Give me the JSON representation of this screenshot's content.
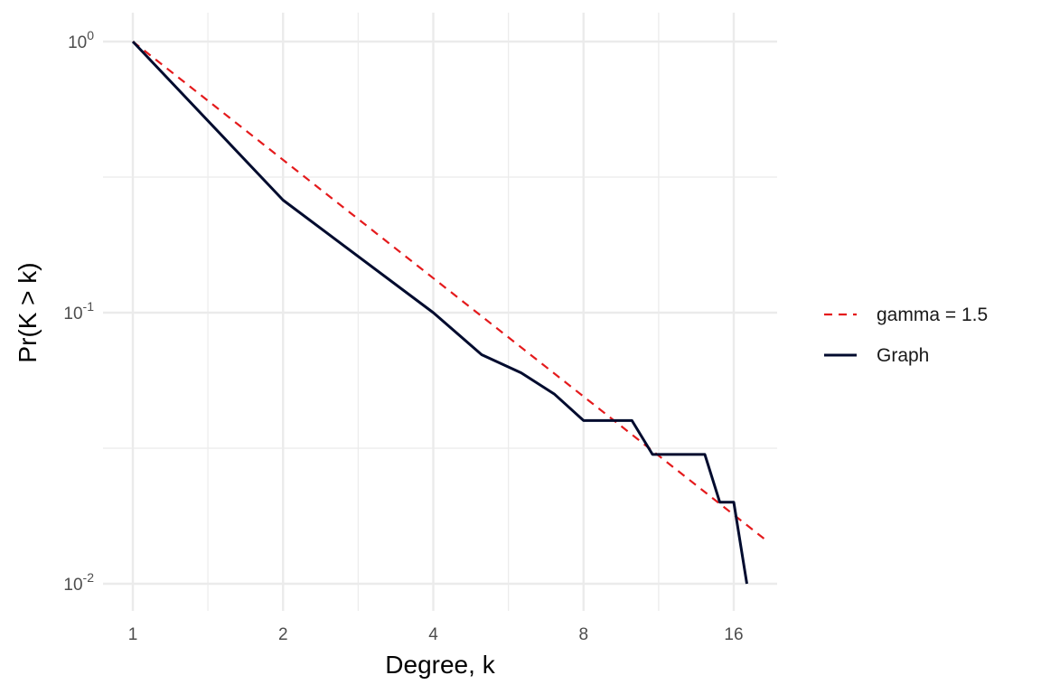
{
  "chart_data": {
    "type": "line",
    "xlabel": "Degree, k",
    "ylabel": "Pr(K > k)",
    "x_scale": "log2",
    "y_scale": "log10",
    "xlim": [
      1,
      18.5
    ],
    "ylim": [
      0.0085,
      1.15
    ],
    "x_ticks": [
      {
        "value": 1,
        "label": "1"
      },
      {
        "value": 2,
        "label": "2"
      },
      {
        "value": 4,
        "label": "4"
      },
      {
        "value": 8,
        "label": "8"
      },
      {
        "value": 16,
        "label": "16"
      }
    ],
    "x_minor_ticks": [
      1.414,
      2.828,
      5.657,
      11.314
    ],
    "y_ticks": [
      {
        "value": 1,
        "base": "10",
        "exp": "0"
      },
      {
        "value": 0.1,
        "base": "10",
        "exp": "-1"
      },
      {
        "value": 0.01,
        "base": "10",
        "exp": "-2"
      }
    ],
    "y_minor_ticks": [
      0.3162,
      0.03162
    ],
    "grid": true,
    "legend_position": "right",
    "series": [
      {
        "name": "gamma = 1.5",
        "style": "dashed",
        "color": "#e41a1c",
        "x": [
          1,
          18.5
        ],
        "y": [
          1,
          0.01456
        ]
      },
      {
        "name": "Graph",
        "style": "solid",
        "color": "#000b2e",
        "x": [
          1,
          2,
          4,
          5,
          6,
          7,
          8,
          10,
          11,
          14,
          15,
          16,
          17
        ],
        "y": [
          1,
          0.26,
          0.1,
          0.07,
          0.06,
          0.05,
          0.04,
          0.04,
          0.03,
          0.03,
          0.02,
          0.02,
          0.01
        ]
      }
    ]
  }
}
